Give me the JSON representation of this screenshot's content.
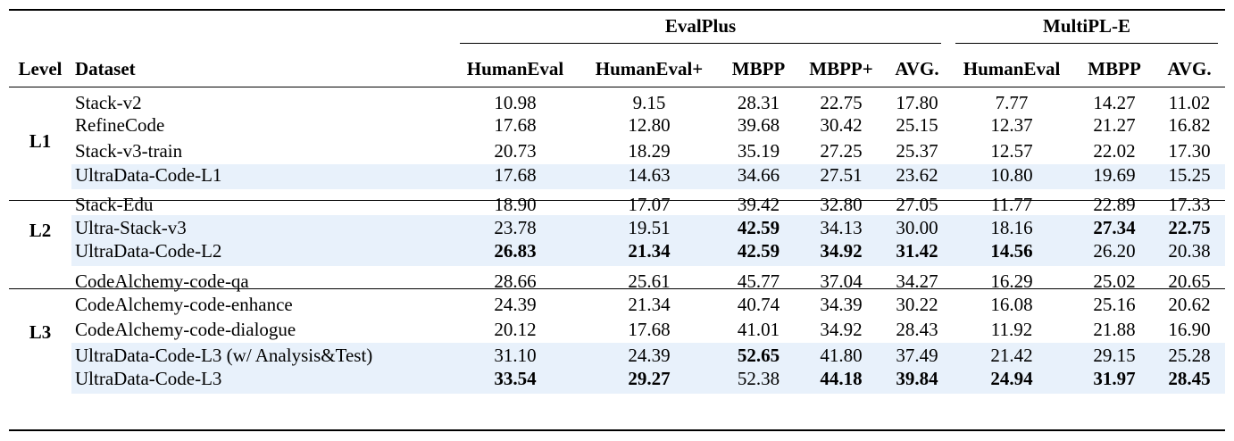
{
  "table": {
    "group_headers": [
      {
        "label": "EvalPlus",
        "span": 5
      },
      {
        "label": "MultiPL-E",
        "span": 3
      }
    ],
    "columns": [
      "Level",
      "Dataset",
      "HumanEval",
      "HumanEval+",
      "MBPP",
      "MBPP+",
      "AVG.",
      "HumanEval",
      "MBPP",
      "AVG."
    ],
    "groups": [
      {
        "level": "L1",
        "rows": [
          {
            "dataset": "Stack-v2",
            "highlight": false,
            "values": [
              "10.98",
              "9.15",
              "28.31",
              "22.75",
              "17.80",
              "7.77",
              "14.27",
              "11.02"
            ],
            "bold": [
              false,
              false,
              false,
              false,
              false,
              false,
              false,
              false
            ]
          },
          {
            "dataset": "RefineCode",
            "highlight": false,
            "values": [
              "17.68",
              "12.80",
              "39.68",
              "30.42",
              "25.15",
              "12.37",
              "21.27",
              "16.82"
            ],
            "bold": [
              false,
              false,
              false,
              false,
              false,
              false,
              false,
              false
            ]
          },
          {
            "dataset": "Stack-v3-train",
            "highlight": false,
            "values": [
              "20.73",
              "18.29",
              "35.19",
              "27.25",
              "25.37",
              "12.57",
              "22.02",
              "17.30"
            ],
            "bold": [
              false,
              false,
              false,
              false,
              false,
              false,
              false,
              false
            ]
          },
          {
            "dataset": "UltraData-Code-L1",
            "highlight": true,
            "values": [
              "17.68",
              "14.63",
              "34.66",
              "27.51",
              "23.62",
              "10.80",
              "19.69",
              "15.25"
            ],
            "bold": [
              false,
              false,
              false,
              false,
              false,
              false,
              false,
              false
            ]
          }
        ]
      },
      {
        "level": "L2",
        "rows": [
          {
            "dataset": "Stack-Edu",
            "highlight": false,
            "values": [
              "18.90",
              "17.07",
              "39.42",
              "32.80",
              "27.05",
              "11.77",
              "22.89",
              "17.33"
            ],
            "bold": [
              false,
              false,
              false,
              false,
              false,
              false,
              false,
              false
            ]
          },
          {
            "dataset": "Ultra-Stack-v3",
            "highlight": true,
            "values": [
              "23.78",
              "19.51",
              "42.59",
              "34.13",
              "30.00",
              "18.16",
              "27.34",
              "22.75"
            ],
            "bold": [
              false,
              false,
              true,
              false,
              false,
              false,
              true,
              true
            ]
          },
          {
            "dataset": "UltraData-Code-L2",
            "highlight": true,
            "values": [
              "26.83",
              "21.34",
              "42.59",
              "34.92",
              "31.42",
              "14.56",
              "26.20",
              "20.38"
            ],
            "bold": [
              true,
              true,
              true,
              true,
              true,
              true,
              false,
              false
            ]
          }
        ]
      },
      {
        "level": "L3",
        "rows": [
          {
            "dataset": "CodeAlchemy-code-qa",
            "highlight": false,
            "values": [
              "28.66",
              "25.61",
              "45.77",
              "37.04",
              "34.27",
              "16.29",
              "25.02",
              "20.65"
            ],
            "bold": [
              false,
              false,
              false,
              false,
              false,
              false,
              false,
              false
            ]
          },
          {
            "dataset": "CodeAlchemy-code-enhance",
            "highlight": false,
            "values": [
              "24.39",
              "21.34",
              "40.74",
              "34.39",
              "30.22",
              "16.08",
              "25.16",
              "20.62"
            ],
            "bold": [
              false,
              false,
              false,
              false,
              false,
              false,
              false,
              false
            ]
          },
          {
            "dataset": "CodeAlchemy-code-dialogue",
            "highlight": false,
            "values": [
              "20.12",
              "17.68",
              "41.01",
              "34.92",
              "28.43",
              "11.92",
              "21.88",
              "16.90"
            ],
            "bold": [
              false,
              false,
              false,
              false,
              false,
              false,
              false,
              false
            ]
          },
          {
            "dataset": "UltraData-Code-L3 (w/ Analysis&Test)",
            "highlight": true,
            "values": [
              "31.10",
              "24.39",
              "52.65",
              "41.80",
              "37.49",
              "21.42",
              "29.15",
              "25.28"
            ],
            "bold": [
              false,
              false,
              true,
              false,
              false,
              false,
              false,
              false
            ]
          },
          {
            "dataset": "UltraData-Code-L3",
            "highlight": true,
            "values": [
              "33.54",
              "29.27",
              "52.38",
              "44.18",
              "39.84",
              "24.94",
              "31.97",
              "28.45"
            ],
            "bold": [
              true,
              true,
              false,
              true,
              true,
              true,
              true,
              true
            ]
          }
        ]
      }
    ],
    "highlight_color": "#e8f1fb"
  }
}
